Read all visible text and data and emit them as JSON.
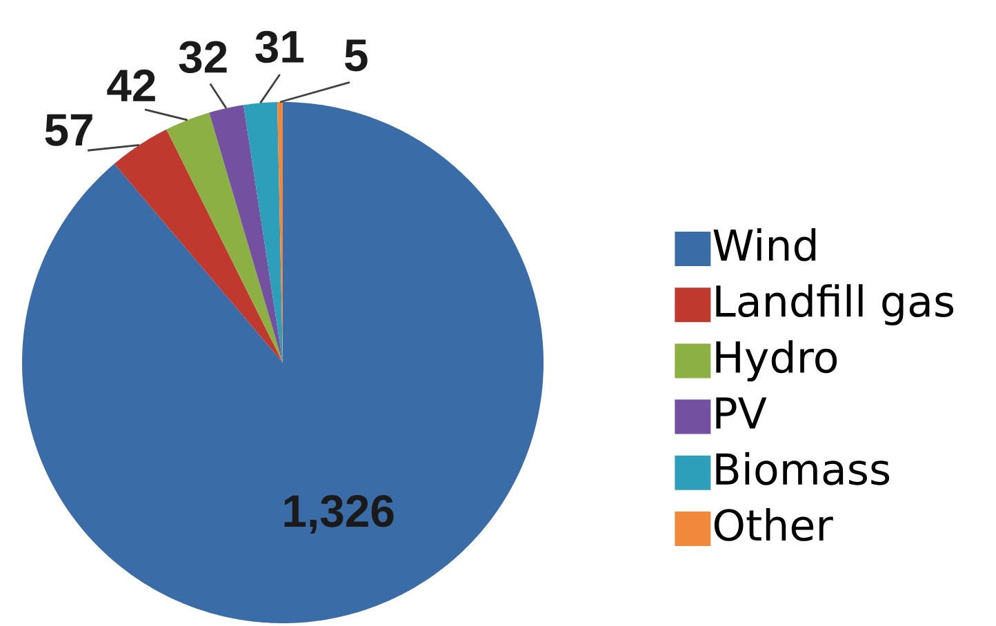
{
  "chart_data": {
    "type": "pie",
    "categories": [
      "Wind",
      "Landfill gas",
      "Hydro",
      "PV",
      "Biomass",
      "Other"
    ],
    "values": [
      1326,
      57,
      42,
      32,
      31,
      5
    ],
    "colors": [
      "#3a6ca8",
      "#c0392f",
      "#8cb043",
      "#7350a0",
      "#2e9fbb",
      "#f0893c"
    ],
    "value_labels": [
      "1,326",
      "57",
      "42",
      "32",
      "31",
      "5"
    ],
    "legend": "right"
  }
}
